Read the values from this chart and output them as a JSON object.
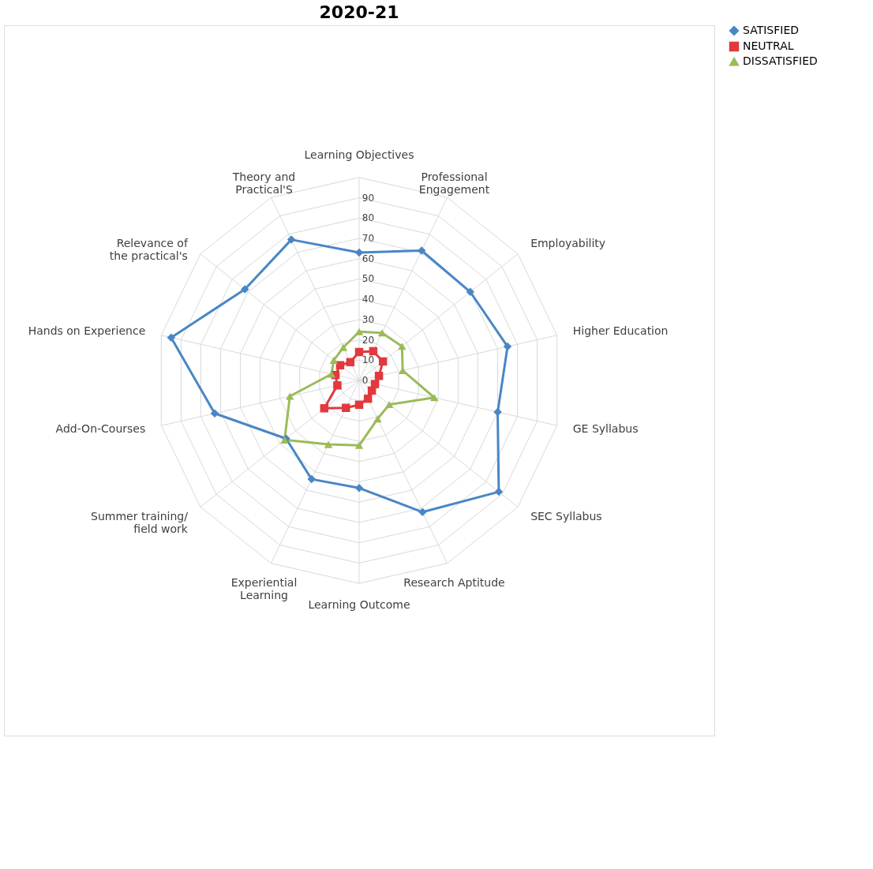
{
  "chart_data": {
    "type": "radar",
    "title": "2020-21",
    "categories": [
      "Learning Objectives",
      "Professional Engagement",
      "Employability",
      "Higher Education",
      "GE Syllabus",
      "SEC Syllabus",
      "Research Aptitude",
      "Learning Outcome",
      "Experiential Learning",
      "Summer training/field work",
      "Add-On-Courses",
      "Hands on Experience",
      "Relevance of the practical's",
      "Theory and Practical'S"
    ],
    "series": [
      {
        "name": "SATISFIED",
        "color": "#4a86c5",
        "marker": "diamond",
        "values": [
          63,
          71,
          70,
          75,
          70,
          88,
          72,
          53,
          54,
          46,
          73,
          95,
          72,
          77
        ]
      },
      {
        "name": "NEUTRAL",
        "color": "#e0393e",
        "marker": "square",
        "values": [
          14,
          16,
          15,
          10,
          8,
          8,
          10,
          12,
          15,
          22,
          11,
          12,
          12,
          10
        ]
      },
      {
        "name": "DISSATISFIED",
        "color": "#9bbb59",
        "marker": "triangle",
        "values": [
          24,
          26,
          27,
          22,
          38,
          19,
          21,
          32,
          35,
          47,
          35,
          14,
          16,
          18
        ]
      }
    ],
    "ylim": [
      0,
      100
    ],
    "yticks": [
      0,
      10,
      20,
      30,
      40,
      50,
      60,
      70,
      80,
      90
    ],
    "grid": true,
    "legend": "right"
  }
}
